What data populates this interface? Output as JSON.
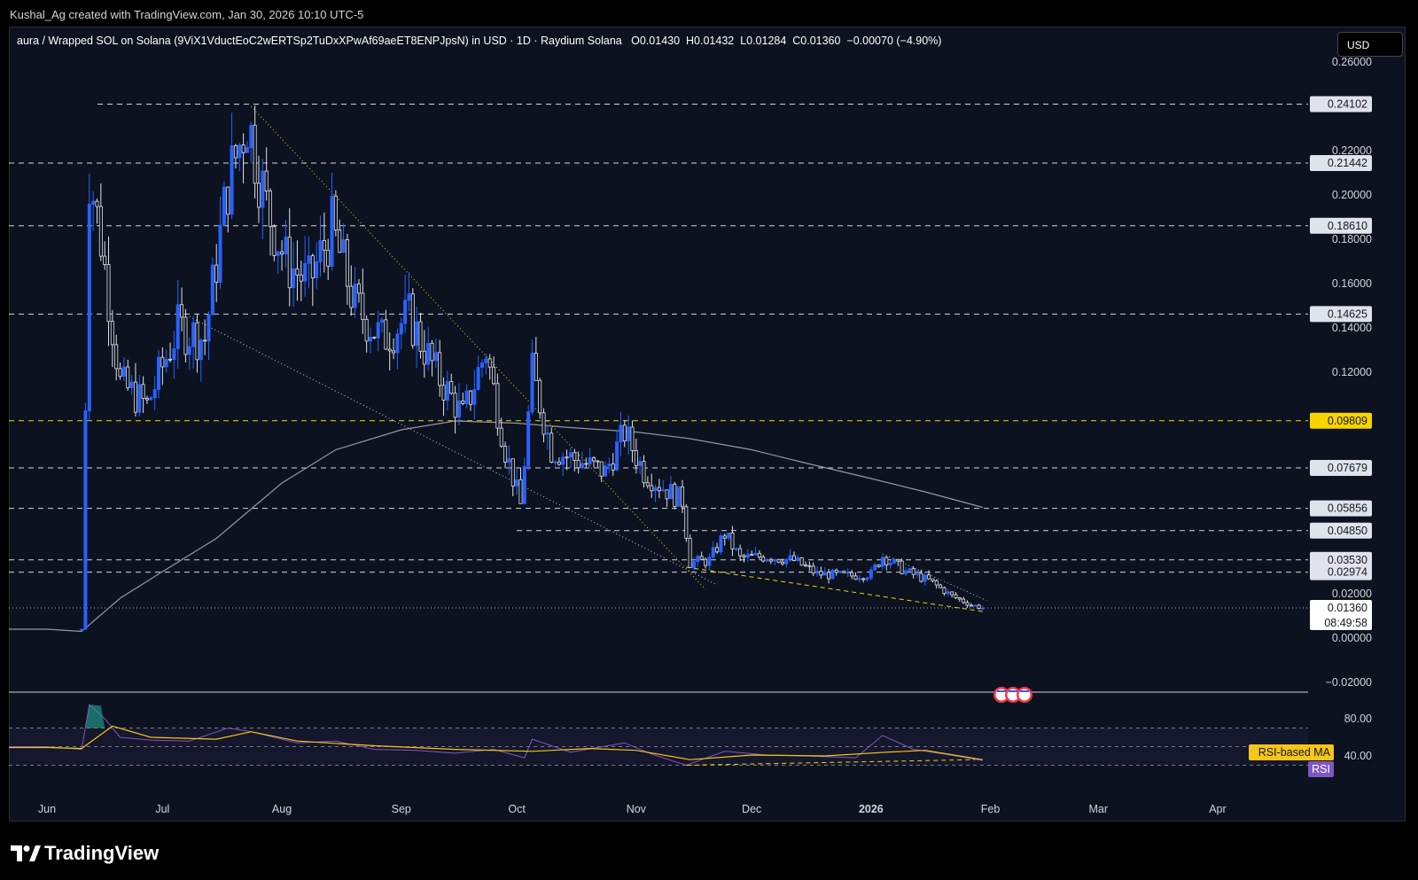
{
  "top_caption": "Kushal_Ag created with TradingView.com, Jan 30, 2026 10:10 UTC-5",
  "header": {
    "symbol": "aura / Wrapped SOL on Solana (9ViX1VductEoC2wERTSp2TuDxXPwAf69aeET8ENPJpsN) in USD · 1D · Raydium Solana",
    "ohlc": "O0.01430  H0.01432  L0.01284  C0.01360  −0.00070 (−4.90%)"
  },
  "currency_button": "USD",
  "brand": "TradingView",
  "colors": {
    "background": "#0c1220",
    "up_candle": "#2962ff",
    "down_candle": "#e0e3eb",
    "ma_line": "#9598a1",
    "rsi_line": "#7e57c2",
    "rsi_ma_line": "#f5c518",
    "accent_level": "#f5d400"
  },
  "icons": [
    "tradingview-logo-icon",
    "us-flag-event-icon"
  ],
  "chart_data": {
    "type": "candlestick",
    "interval": "1D",
    "last": {
      "open": 0.0143,
      "high": 0.01432,
      "low": 0.01284,
      "close": 0.0136,
      "change": -0.0007,
      "change_pct": -4.9
    },
    "countdown": "08:49:58",
    "price_axis": {
      "ticks": [
        "0.26000",
        "0.22000",
        "0.20000",
        "0.18000",
        "0.16000",
        "0.14000",
        "0.12000",
        "0.02000",
        "0.00000",
        "−0.02000"
      ],
      "range": [
        -0.025,
        0.265
      ]
    },
    "time_axis": {
      "labels": [
        {
          "text": "Jun",
          "date": "2025-06-01"
        },
        {
          "text": "Jul",
          "date": "2025-07-01"
        },
        {
          "text": "Aug",
          "date": "2025-08-01"
        },
        {
          "text": "Sep",
          "date": "2025-09-01"
        },
        {
          "text": "Oct",
          "date": "2025-10-01"
        },
        {
          "text": "Nov",
          "date": "2025-11-01"
        },
        {
          "text": "Dec",
          "date": "2025-12-01"
        },
        {
          "text": "2026",
          "date": "2026-01-01",
          "bold": true
        },
        {
          "text": "Feb",
          "date": "2026-02-01"
        },
        {
          "text": "Mar",
          "date": "2026-03-01"
        },
        {
          "text": "Apr",
          "date": "2026-04-01"
        }
      ]
    },
    "horizontal_levels": [
      {
        "value": "0.24102",
        "price": 0.24102,
        "style": "white"
      },
      {
        "value": "0.21442",
        "price": 0.21442,
        "style": "white"
      },
      {
        "value": "0.18610",
        "price": 0.1861,
        "style": "white"
      },
      {
        "value": "0.14625",
        "price": 0.14625,
        "style": "white"
      },
      {
        "value": "0.09809",
        "price": 0.09809,
        "style": "yellow"
      },
      {
        "value": "0.07679",
        "price": 0.07679,
        "style": "white"
      },
      {
        "value": "0.05856",
        "price": 0.05856,
        "style": "white"
      },
      {
        "value": "0.04850",
        "price": 0.0485,
        "style": "white"
      },
      {
        "value": "0.03530",
        "price": 0.0353,
        "style": "white"
      },
      {
        "value": "0.02974",
        "price": 0.02974,
        "style": "white"
      },
      {
        "value": "0.01360",
        "price": 0.0136,
        "style": "current"
      }
    ],
    "price_series_approx": [
      {
        "date": "2025-06-10",
        "close": 0.004
      },
      {
        "date": "2025-06-12",
        "close": 0.21
      },
      {
        "date": "2025-06-15",
        "close": 0.18
      },
      {
        "date": "2025-06-20",
        "close": 0.115
      },
      {
        "date": "2025-06-27",
        "close": 0.105
      },
      {
        "date": "2025-07-05",
        "close": 0.14
      },
      {
        "date": "2025-07-12",
        "close": 0.135
      },
      {
        "date": "2025-07-18",
        "close": 0.205
      },
      {
        "date": "2025-07-23",
        "close": 0.235
      },
      {
        "date": "2025-07-28",
        "close": 0.195
      },
      {
        "date": "2025-08-02",
        "close": 0.17
      },
      {
        "date": "2025-08-08",
        "close": 0.16
      },
      {
        "date": "2025-08-14",
        "close": 0.185
      },
      {
        "date": "2025-08-20",
        "close": 0.15
      },
      {
        "date": "2025-08-27",
        "close": 0.135
      },
      {
        "date": "2025-09-03",
        "close": 0.145
      },
      {
        "date": "2025-09-10",
        "close": 0.12
      },
      {
        "date": "2025-09-17",
        "close": 0.1
      },
      {
        "date": "2025-09-23",
        "close": 0.13
      },
      {
        "date": "2025-09-28",
        "close": 0.085
      },
      {
        "date": "2025-10-02",
        "close": 0.06
      },
      {
        "date": "2025-10-05",
        "close": 0.12
      },
      {
        "date": "2025-10-10",
        "close": 0.085
      },
      {
        "date": "2025-10-17",
        "close": 0.08
      },
      {
        "date": "2025-10-24",
        "close": 0.075
      },
      {
        "date": "2025-10-29",
        "close": 0.093
      },
      {
        "date": "2025-11-03",
        "close": 0.075
      },
      {
        "date": "2025-11-08",
        "close": 0.068
      },
      {
        "date": "2025-11-13",
        "close": 0.062
      },
      {
        "date": "2025-11-15",
        "close": 0.034
      },
      {
        "date": "2025-11-20",
        "close": 0.035
      },
      {
        "date": "2025-11-24",
        "close": 0.047
      },
      {
        "date": "2025-11-28",
        "close": 0.036
      },
      {
        "date": "2025-12-05",
        "close": 0.037
      },
      {
        "date": "2025-12-12",
        "close": 0.035
      },
      {
        "date": "2025-12-18",
        "close": 0.029
      },
      {
        "date": "2025-12-26",
        "close": 0.028
      },
      {
        "date": "2026-01-01",
        "close": 0.029
      },
      {
        "date": "2026-01-04",
        "close": 0.037
      },
      {
        "date": "2026-01-10",
        "close": 0.03
      },
      {
        "date": "2026-01-16",
        "close": 0.026
      },
      {
        "date": "2026-01-22",
        "close": 0.019
      },
      {
        "date": "2026-01-27",
        "close": 0.015
      },
      {
        "date": "2026-01-30",
        "close": 0.0136
      }
    ],
    "moving_average_approx": [
      {
        "date": "2025-06-01",
        "value": 0.004
      },
      {
        "date": "2025-06-10",
        "value": 0.003
      },
      {
        "date": "2025-06-20",
        "value": 0.018
      },
      {
        "date": "2025-07-01",
        "value": 0.03
      },
      {
        "date": "2025-07-15",
        "value": 0.045
      },
      {
        "date": "2025-08-01",
        "value": 0.07
      },
      {
        "date": "2025-08-15",
        "value": 0.085
      },
      {
        "date": "2025-09-01",
        "value": 0.094
      },
      {
        "date": "2025-09-15",
        "value": 0.098
      },
      {
        "date": "2025-10-01",
        "value": 0.097
      },
      {
        "date": "2025-10-15",
        "value": 0.095
      },
      {
        "date": "2025-11-01",
        "value": 0.093
      },
      {
        "date": "2025-11-15",
        "value": 0.09
      },
      {
        "date": "2025-12-01",
        "value": 0.085
      },
      {
        "date": "2025-12-15",
        "value": 0.079
      },
      {
        "date": "2026-01-01",
        "value": 0.072
      },
      {
        "date": "2026-01-15",
        "value": 0.066
      },
      {
        "date": "2026-01-30",
        "value": 0.059
      }
    ],
    "rsi_panel": {
      "ticks": [
        "80.00",
        "40.00"
      ],
      "range": [
        22,
        98
      ],
      "labels": [
        "RSI-based MA",
        "RSI"
      ],
      "rsi_approx": [
        {
          "date": "2025-06-01",
          "value": 50
        },
        {
          "date": "2025-06-10",
          "value": 47
        },
        {
          "date": "2025-06-12",
          "value": 95
        },
        {
          "date": "2025-06-16",
          "value": 80
        },
        {
          "date": "2025-06-20",
          "value": 60
        },
        {
          "date": "2025-06-28",
          "value": 57
        },
        {
          "date": "2025-07-08",
          "value": 56
        },
        {
          "date": "2025-07-18",
          "value": 70
        },
        {
          "date": "2025-07-24",
          "value": 66
        },
        {
          "date": "2025-08-05",
          "value": 54
        },
        {
          "date": "2025-08-15",
          "value": 56
        },
        {
          "date": "2025-08-25",
          "value": 47
        },
        {
          "date": "2025-09-05",
          "value": 46
        },
        {
          "date": "2025-09-15",
          "value": 43
        },
        {
          "date": "2025-09-25",
          "value": 47
        },
        {
          "date": "2025-10-03",
          "value": 38
        },
        {
          "date": "2025-10-05",
          "value": 58
        },
        {
          "date": "2025-10-15",
          "value": 44
        },
        {
          "date": "2025-10-29",
          "value": 54
        },
        {
          "date": "2025-11-05",
          "value": 42
        },
        {
          "date": "2025-11-14",
          "value": 30
        },
        {
          "date": "2025-11-24",
          "value": 45
        },
        {
          "date": "2025-12-05",
          "value": 41
        },
        {
          "date": "2025-12-15",
          "value": 40
        },
        {
          "date": "2025-12-28",
          "value": 38
        },
        {
          "date": "2026-01-04",
          "value": 62
        },
        {
          "date": "2026-01-12",
          "value": 47
        },
        {
          "date": "2026-01-20",
          "value": 42
        },
        {
          "date": "2026-01-30",
          "value": 35
        }
      ],
      "rsi_ma_approx": [
        {
          "date": "2025-06-01",
          "value": 49
        },
        {
          "date": "2025-06-10",
          "value": 48
        },
        {
          "date": "2025-06-18",
          "value": 72
        },
        {
          "date": "2025-06-28",
          "value": 60
        },
        {
          "date": "2025-07-15",
          "value": 58
        },
        {
          "date": "2025-07-24",
          "value": 66
        },
        {
          "date": "2025-08-05",
          "value": 56
        },
        {
          "date": "2025-08-25",
          "value": 51
        },
        {
          "date": "2025-09-15",
          "value": 47
        },
        {
          "date": "2025-10-05",
          "value": 45
        },
        {
          "date": "2025-10-20",
          "value": 48
        },
        {
          "date": "2025-11-01",
          "value": 46
        },
        {
          "date": "2025-11-15",
          "value": 36
        },
        {
          "date": "2025-12-01",
          "value": 41
        },
        {
          "date": "2025-12-20",
          "value": 40
        },
        {
          "date": "2026-01-05",
          "value": 44
        },
        {
          "date": "2026-01-15",
          "value": 46
        },
        {
          "date": "2026-01-30",
          "value": 36
        }
      ]
    },
    "trend_lines": [
      {
        "style": "yellow-dotted",
        "from": {
          "date": "2025-07-24",
          "price": 0.24
        },
        "to": {
          "date": "2025-11-19",
          "price": 0.022
        }
      },
      {
        "style": "white-dotted",
        "from": {
          "date": "2025-07-08",
          "price": 0.145
        },
        "to": {
          "date": "2025-11-22",
          "price": 0.024
        }
      },
      {
        "style": "yellow-dashed",
        "from": {
          "date": "2025-11-14",
          "price": 0.032
        },
        "to": {
          "date": "2026-01-30",
          "price": 0.012
        }
      },
      {
        "style": "white-dotted",
        "from": {
          "date": "2026-01-04",
          "price": 0.038
        },
        "to": {
          "date": "2026-01-31",
          "price": 0.017
        }
      }
    ]
  }
}
